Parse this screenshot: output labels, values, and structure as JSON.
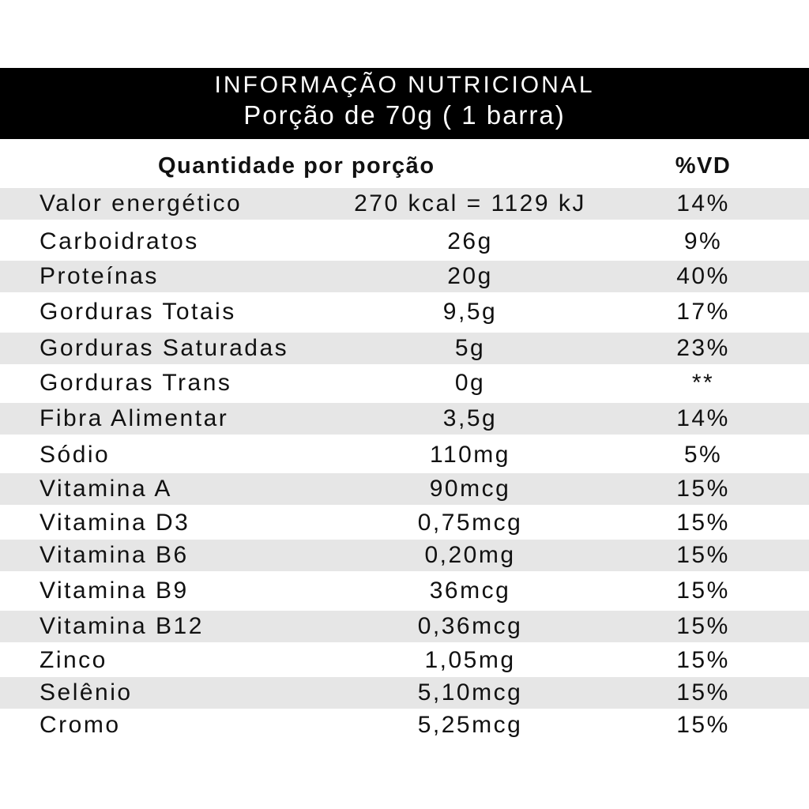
{
  "header": {
    "title": "INFORMAÇÃO NUTRICIONAL",
    "subtitle": "Porção de 70g ( 1 barra)"
  },
  "columns": {
    "quantity": "Quantidade por porção",
    "vd": "%VD"
  },
  "rows": [
    {
      "name": "Valor energético",
      "amount": "270 kcal = 1129 kJ",
      "vd": "14%"
    },
    {
      "name": "Carboidratos",
      "amount": "26g",
      "vd": "9%"
    },
    {
      "name": "Proteínas",
      "amount": "20g",
      "vd": "40%"
    },
    {
      "name": "Gorduras Totais",
      "amount": "9,5g",
      "vd": "17%"
    },
    {
      "name": "Gorduras Saturadas",
      "amount": "5g",
      "vd": "23%"
    },
    {
      "name": "Gorduras Trans",
      "amount": "0g",
      "vd": "**"
    },
    {
      "name": "Fibra Alimentar",
      "amount": "3,5g",
      "vd": "14%"
    },
    {
      "name": "Sódio",
      "amount": "110mg",
      "vd": "5%"
    },
    {
      "name": "Vitamina A",
      "amount": "90mcg",
      "vd": "15%"
    },
    {
      "name": "Vitamina D3",
      "amount": "0,75mcg",
      "vd": "15%"
    },
    {
      "name": "Vitamina B6",
      "amount": "0,20mg",
      "vd": "15%"
    },
    {
      "name": "Vitamina B9",
      "amount": "36mcg",
      "vd": "15%"
    },
    {
      "name": "Vitamina B12",
      "amount": "0,36mcg",
      "vd": "15%"
    },
    {
      "name": "Zinco",
      "amount": "1,05mg",
      "vd": "15%"
    },
    {
      "name": "Selênio",
      "amount": "5,10mcg",
      "vd": "15%"
    },
    {
      "name": "Cromo",
      "amount": "5,25mcg",
      "vd": "15%"
    }
  ]
}
